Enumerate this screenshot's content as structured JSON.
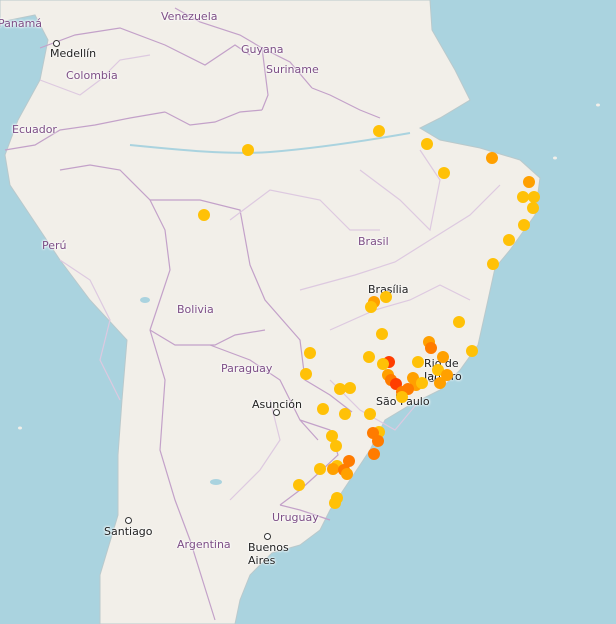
{
  "map": {
    "countries": {
      "panama": "Panamá",
      "venezuela": "Venezuela",
      "colombia": "Colombia",
      "guyana": "Guyana",
      "suriname": "Suriname",
      "ecuador": "Ecuador",
      "peru": "Perú",
      "brasil": "Brasil",
      "bolivia": "Bolivia",
      "paraguay": "Paraguay",
      "uruguay": "Uruguay",
      "argentina": "Argentina"
    },
    "cities": {
      "medellin": "Medellín",
      "brasilia": "Brasília",
      "rio": "Rio de Janeiro",
      "sao_paulo": "São Paulo",
      "asuncion": "Asunción",
      "santiago": "Santiago",
      "buenos_aires": "Buenos Aires"
    },
    "colors": {
      "ocean": "#aad3df",
      "land": "#f2efe9",
      "border": "#c3a1c9",
      "marker_yellow": "#ffc107",
      "marker_amber": "#ffa000",
      "marker_orange": "#ff7b00",
      "marker_red": "#ff3d00"
    },
    "marker_levels": [
      "yellow",
      "amber",
      "orange",
      "red"
    ]
  }
}
